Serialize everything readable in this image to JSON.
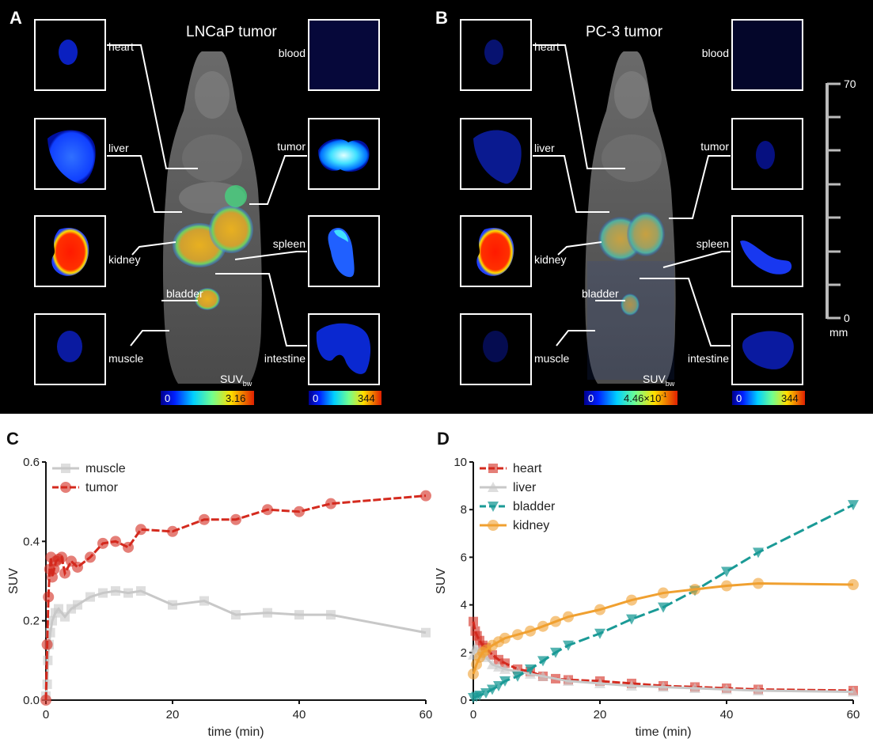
{
  "panels": {
    "A": {
      "letter": "A",
      "title": "LNCaP tumor",
      "labels": {
        "heart": "heart",
        "blood": "blood",
        "liver": "liver",
        "tumor": "tumor",
        "kidney": "kidney",
        "spleen": "spleen",
        "bladder": "bladder",
        "muscle": "muscle",
        "intestine": "intestine"
      },
      "suv_label": "SUV",
      "suv_sub": "bw",
      "scale1_min": "0",
      "scale1_max": "3.16",
      "scale2_min": "0",
      "scale2_max": "344"
    },
    "B": {
      "letter": "B",
      "title": "PC-3 tumor",
      "labels": {
        "heart": "heart",
        "blood": "blood",
        "liver": "liver",
        "tumor": "tumor",
        "kidney": "kidney",
        "spleen": "spleen",
        "bladder": "bladder",
        "muscle": "muscle",
        "intestine": "intestine"
      },
      "suv_label": "SUV",
      "suv_sub": "bw",
      "scale1_min": "0",
      "scale1_max": "4.46×10",
      "scale1_exp": "-1",
      "scale2_min": "0",
      "scale2_max": "344"
    },
    "ruler": {
      "top": "70",
      "bottom": "0",
      "unit": "mm"
    }
  },
  "chart_data": [
    {
      "panel": "C",
      "type": "line",
      "xlabel": "time (min)",
      "ylabel": "SUV",
      "xlim": [
        0,
        60
      ],
      "ylim": [
        0,
        0.6
      ],
      "xticks": [
        0,
        20,
        40,
        60
      ],
      "yticks": [
        0.0,
        0.2,
        0.4,
        0.6
      ],
      "ytick_labels": [
        "0.0",
        "0.2",
        "0.4",
        "0.6"
      ],
      "legend_position": "top-left",
      "series": [
        {
          "name": "muscle",
          "color": "#c8c8c8",
          "marker": "square",
          "points": [
            [
              0,
              0.01
            ],
            [
              0.2,
              0.04
            ],
            [
              0.3,
              0.1
            ],
            [
              0.5,
              0.14
            ],
            [
              0.7,
              0.17
            ],
            [
              1,
              0.2
            ],
            [
              1.5,
              0.22
            ],
            [
              2,
              0.23
            ],
            [
              3,
              0.21
            ],
            [
              4,
              0.23
            ],
            [
              5,
              0.24
            ],
            [
              7,
              0.26
            ],
            [
              9,
              0.27
            ],
            [
              11,
              0.275
            ],
            [
              13,
              0.27
            ],
            [
              15,
              0.275
            ],
            [
              20,
              0.24
            ],
            [
              25,
              0.25
            ],
            [
              30,
              0.215
            ],
            [
              35,
              0.22
            ],
            [
              40,
              0.215
            ],
            [
              45,
              0.215
            ],
            [
              60,
              0.17
            ]
          ]
        },
        {
          "name": "tumor",
          "color": "#d42a1e",
          "marker": "circle",
          "points": [
            [
              0,
              0.0
            ],
            [
              0.2,
              0.14
            ],
            [
              0.4,
              0.26
            ],
            [
              0.6,
              0.33
            ],
            [
              0.8,
              0.36
            ],
            [
              1,
              0.31
            ],
            [
              1.3,
              0.33
            ],
            [
              1.6,
              0.35
            ],
            [
              2,
              0.355
            ],
            [
              2.5,
              0.36
            ],
            [
              3,
              0.32
            ],
            [
              4,
              0.35
            ],
            [
              5,
              0.335
            ],
            [
              7,
              0.36
            ],
            [
              9,
              0.395
            ],
            [
              11,
              0.4
            ],
            [
              13,
              0.385
            ],
            [
              15,
              0.43
            ],
            [
              20,
              0.425
            ],
            [
              25,
              0.455
            ],
            [
              30,
              0.455
            ],
            [
              35,
              0.48
            ],
            [
              40,
              0.475
            ],
            [
              45,
              0.495
            ],
            [
              60,
              0.515
            ]
          ]
        }
      ]
    },
    {
      "panel": "D",
      "type": "line",
      "xlabel": "time (min)",
      "ylabel": "SUV",
      "xlim": [
        0,
        60
      ],
      "ylim": [
        0,
        10
      ],
      "xticks": [
        0,
        20,
        40,
        60
      ],
      "yticks": [
        0,
        2,
        4,
        6,
        8,
        10
      ],
      "ytick_labels": [
        "0",
        "2",
        "4",
        "6",
        "8",
        "10"
      ],
      "legend_position": "top-left",
      "series": [
        {
          "name": "heart",
          "color": "#d42a1e",
          "marker": "square",
          "points": [
            [
              0,
              3.3
            ],
            [
              0.3,
              2.9
            ],
            [
              0.6,
              2.7
            ],
            [
              1,
              2.5
            ],
            [
              1.5,
              2.3
            ],
            [
              2,
              2.2
            ],
            [
              3,
              1.9
            ],
            [
              4,
              1.7
            ],
            [
              5,
              1.55
            ],
            [
              7,
              1.3
            ],
            [
              9,
              1.2
            ],
            [
              11,
              1.0
            ],
            [
              13,
              0.9
            ],
            [
              15,
              0.85
            ],
            [
              20,
              0.8
            ],
            [
              25,
              0.7
            ],
            [
              30,
              0.6
            ],
            [
              35,
              0.55
            ],
            [
              40,
              0.5
            ],
            [
              45,
              0.45
            ],
            [
              60,
              0.4
            ]
          ]
        },
        {
          "name": "liver",
          "color": "#c8c8c8",
          "marker": "triangle-up",
          "points": [
            [
              0,
              1.9
            ],
            [
              0.3,
              2.2
            ],
            [
              0.6,
              2.1
            ],
            [
              1,
              2.0
            ],
            [
              1.5,
              1.9
            ],
            [
              2,
              1.8
            ],
            [
              3,
              1.5
            ],
            [
              4,
              1.4
            ],
            [
              5,
              1.3
            ],
            [
              7,
              1.2
            ],
            [
              9,
              1.1
            ],
            [
              11,
              1.0
            ],
            [
              15,
              0.8
            ],
            [
              20,
              0.7
            ],
            [
              25,
              0.6
            ],
            [
              30,
              0.55
            ],
            [
              35,
              0.5
            ],
            [
              40,
              0.45
            ],
            [
              45,
              0.4
            ],
            [
              60,
              0.35
            ]
          ]
        },
        {
          "name": "bladder",
          "color": "#1a9a96",
          "marker": "triangle-down",
          "points": [
            [
              0,
              0.1
            ],
            [
              0.5,
              0.15
            ],
            [
              1,
              0.2
            ],
            [
              2,
              0.3
            ],
            [
              3,
              0.45
            ],
            [
              4,
              0.6
            ],
            [
              5,
              0.8
            ],
            [
              7,
              1.0
            ],
            [
              9,
              1.3
            ],
            [
              11,
              1.65
            ],
            [
              13,
              2.0
            ],
            [
              15,
              2.3
            ],
            [
              20,
              2.8
            ],
            [
              25,
              3.4
            ],
            [
              30,
              3.9
            ],
            [
              35,
              4.6
            ],
            [
              40,
              5.4
            ],
            [
              45,
              6.2
            ],
            [
              60,
              8.2
            ]
          ]
        },
        {
          "name": "kidney",
          "color": "#f0a030",
          "marker": "circle",
          "points": [
            [
              0,
              1.1
            ],
            [
              0.5,
              1.5
            ],
            [
              1,
              1.8
            ],
            [
              1.5,
              2.0
            ],
            [
              2,
              2.1
            ],
            [
              3,
              2.3
            ],
            [
              4,
              2.45
            ],
            [
              5,
              2.6
            ],
            [
              7,
              2.75
            ],
            [
              9,
              2.9
            ],
            [
              11,
              3.1
            ],
            [
              13,
              3.3
            ],
            [
              15,
              3.5
            ],
            [
              20,
              3.8
            ],
            [
              25,
              4.2
            ],
            [
              30,
              4.5
            ],
            [
              35,
              4.65
            ],
            [
              40,
              4.8
            ],
            [
              45,
              4.9
            ],
            [
              60,
              4.85
            ]
          ]
        }
      ]
    }
  ],
  "chart_labels": {
    "C": "C",
    "D": "D"
  }
}
